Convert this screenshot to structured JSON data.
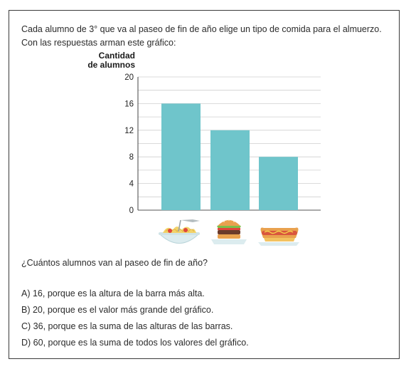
{
  "intro": {
    "line1": "Cada alumno de 3° que va al paseo de fin de año elige un tipo de comida para el almuerzo.",
    "line2": "Con las respuestas arman este gráfico:"
  },
  "question": "¿Cuántos alumnos van al paseo de fin de año?",
  "options": [
    "A) 16, porque es la altura de la barra más alta.",
    "B) 20, porque es el valor más grande del gráfico.",
    "C) 36, porque es la suma de las alturas de las barras.",
    "D) 60, porque es la suma de todos los valores del gráfico."
  ],
  "chart_data": {
    "type": "bar",
    "ylabel_lines": [
      "Cantidad",
      "de alumnos"
    ],
    "categories": [
      "pasta-icon",
      "hamburger-icon",
      "hotdog-icon"
    ],
    "values": [
      16,
      12,
      8
    ],
    "yticks": [
      0,
      4,
      8,
      12,
      16,
      20
    ],
    "ylim": [
      0,
      20
    ],
    "grid": true,
    "bar_color": "#6fc5cb"
  }
}
